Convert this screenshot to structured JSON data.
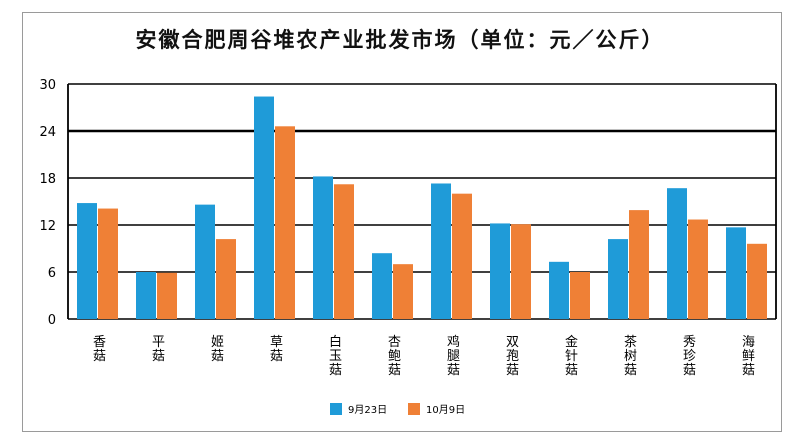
{
  "chart_data": {
    "type": "bar",
    "title": "安徽合肥周谷堆农产业批发市场（单位：元／公斤）",
    "categories": [
      "香菇",
      "平菇",
      "姬菇",
      "草菇",
      "白玉菇",
      "杏鲍菇",
      "鸡腿菇",
      "双孢菇",
      "金针菇",
      "茶树菇",
      "秀珍菇",
      "海鲜菇"
    ],
    "series": [
      {
        "name": "9月23日",
        "color": "#1f9bd8",
        "values": [
          14.8,
          6.0,
          14.6,
          28.4,
          18.2,
          8.4,
          17.3,
          12.2,
          7.3,
          10.2,
          16.7,
          11.7
        ]
      },
      {
        "name": "10月9日",
        "color": "#ef8036",
        "values": [
          14.1,
          5.9,
          10.2,
          24.6,
          17.2,
          7.0,
          16.0,
          12.1,
          6.0,
          13.9,
          12.7,
          9.6
        ]
      }
    ],
    "yticks": [
      0,
      6,
      12,
      18,
      24,
      30
    ],
    "ylim": [
      0,
      30
    ],
    "legend_position": "bottom",
    "grid": true
  }
}
